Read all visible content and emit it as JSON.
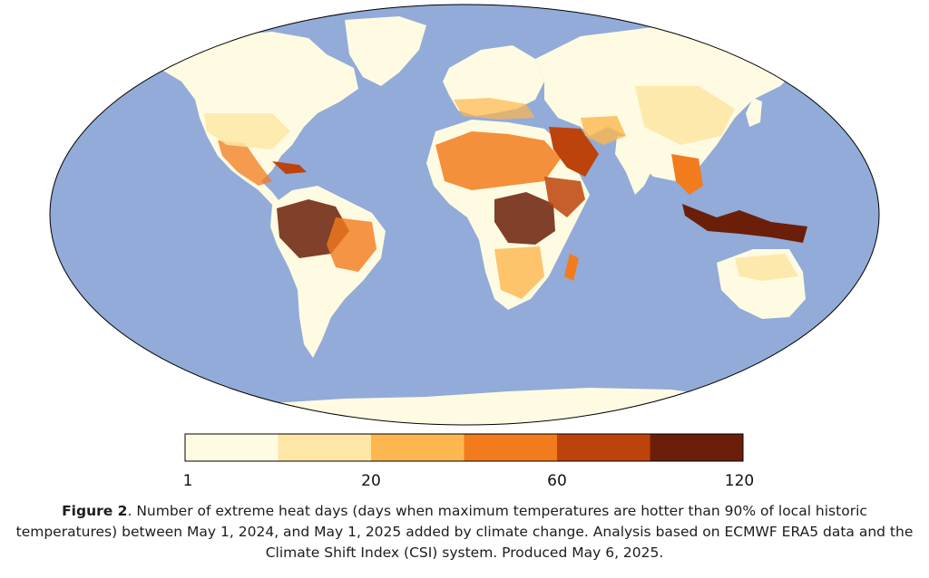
{
  "figure": {
    "label": "Figure 2",
    "caption": ". Number of extreme heat days (days when maximum temperatures are hotter than 90% of local historic temperatures) between May 1, 2024, and May 1, 2025 added by climate change. Analysis based on ECMWF ERA5 data and the Climate Shift Index (CSI) system. Produced May 6, 2025."
  },
  "map": {
    "projection": "robinson",
    "ocean_color": "#92abd8",
    "land_base_color": "#fefbe2",
    "border_color": "#222222"
  },
  "colorbar": {
    "colors": [
      "#fefbe2",
      "#fde7a6",
      "#fdb74e",
      "#f27b1d",
      "#bd430c",
      "#6b1f08"
    ],
    "tick_labels": [
      "1",
      "20",
      "60",
      "120"
    ]
  }
}
